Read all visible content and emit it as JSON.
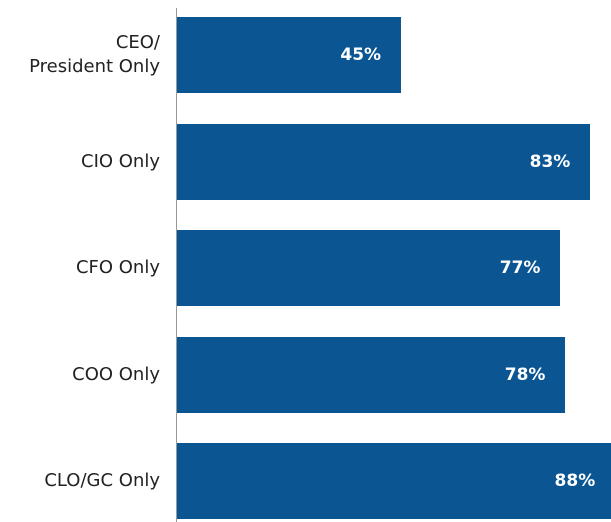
{
  "chart_data": {
    "type": "barh",
    "categories": [
      "CEO/\nPresident Only",
      "CIO Only",
      "CFO Only",
      "COO Only",
      "CLO/GC Only"
    ],
    "values": [
      45,
      83,
      77,
      78,
      88
    ],
    "value_labels": [
      "45%",
      "83%",
      "77%",
      "78%",
      "88%"
    ],
    "color": "#0b5592"
  }
}
